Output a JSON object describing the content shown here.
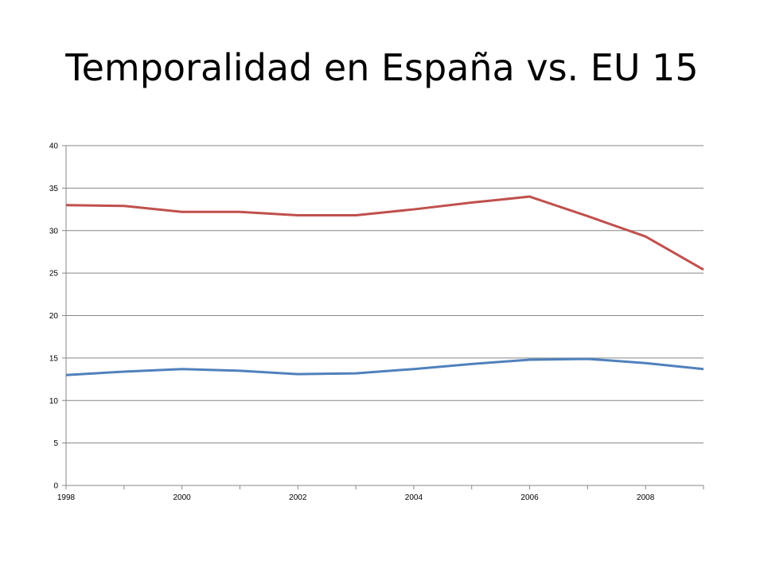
{
  "slide": {
    "title": "Temporalidad en España vs. EU 15"
  },
  "chart_data": {
    "type": "line",
    "title": "",
    "xlabel": "",
    "ylabel": "",
    "xlim": [
      1998,
      2009
    ],
    "ylim": [
      0,
      40
    ],
    "x_ticks": [
      1998,
      2000,
      2002,
      2004,
      2006,
      2008
    ],
    "y_ticks": [
      0,
      5,
      10,
      15,
      20,
      25,
      30,
      35,
      40
    ],
    "grid": "horizontal",
    "legend": "none",
    "x": [
      1998,
      1999,
      2000,
      2001,
      2002,
      2003,
      2004,
      2005,
      2006,
      2007,
      2008,
      2009
    ],
    "series": [
      {
        "color": "#C0504D",
        "values": [
          33.0,
          32.9,
          32.2,
          32.2,
          31.8,
          31.8,
          32.5,
          33.3,
          34.0,
          31.7,
          29.3,
          25.4
        ]
      },
      {
        "color": "#4F81BD",
        "values": [
          13.0,
          13.4,
          13.7,
          13.5,
          13.1,
          13.2,
          13.7,
          14.3,
          14.8,
          14.9,
          14.4,
          13.7
        ]
      }
    ]
  }
}
